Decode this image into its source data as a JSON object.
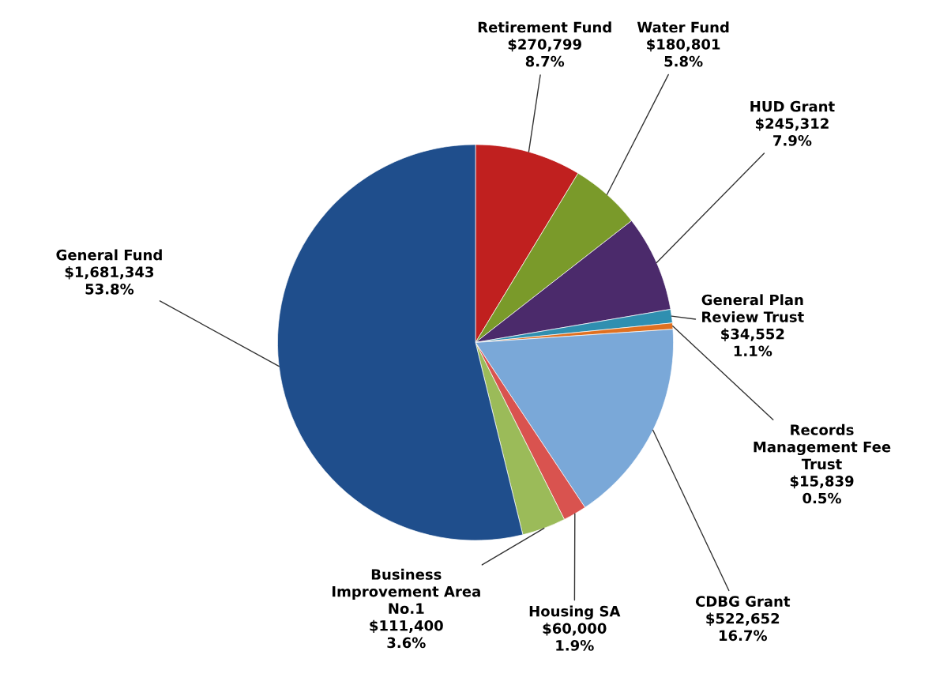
{
  "chart_data": {
    "type": "pie",
    "categories": [
      "Retirement Fund",
      "Water Fund",
      "HUD Grant",
      "General Plan\nReview Trust",
      "Records\nManagement Fee\nTrust",
      "CDBG Grant",
      "Housing SA",
      "Business\nImprovement Area\nNo.1",
      "General Fund"
    ],
    "values": [
      270799,
      180801,
      245312,
      34552,
      15839,
      522652,
      60000,
      111400,
      1681343
    ],
    "value_labels": [
      "$270,799\n8.7%",
      "$180,801\n5.8%",
      "$245,312\n7.9%",
      "$34,552\n1.1%",
      "$15,839\n0.5%",
      "$522,652\n16.7%",
      "$60,000\n1.9%",
      "$111,400\n3.6%",
      "$1,681,343\n53.8%"
    ],
    "colors": [
      "#c0201f",
      "#7a9a2a",
      "#4b2a6b",
      "#2f8fb0",
      "#e07020",
      "#7aa8d8",
      "#d9534f",
      "#9bbb59",
      "#1f4e8c"
    ]
  }
}
